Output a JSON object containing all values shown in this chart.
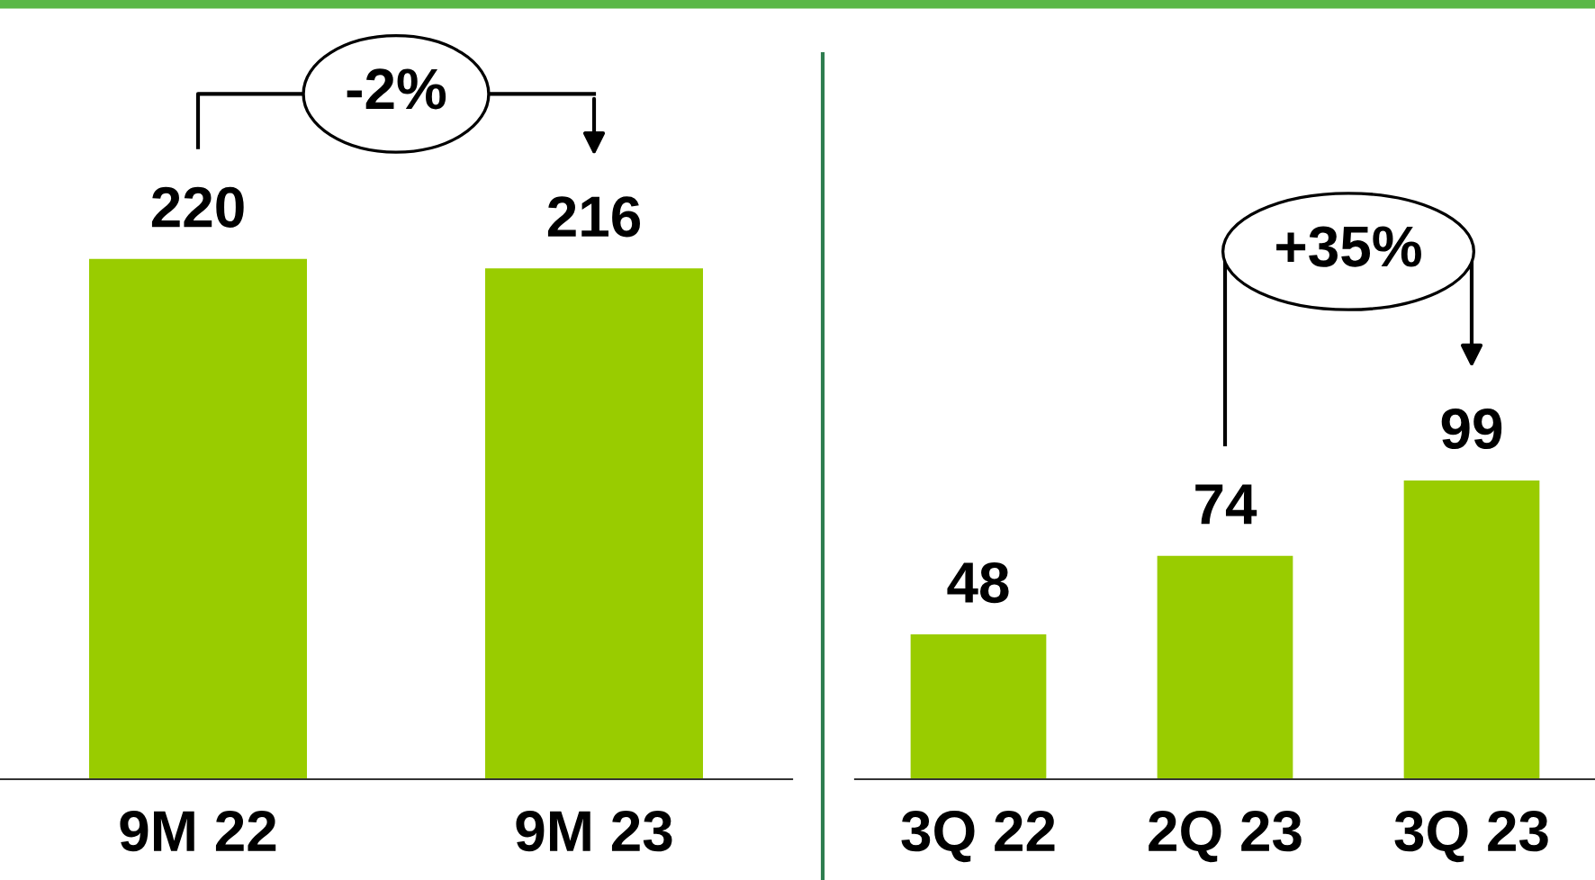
{
  "chart_data": [
    {
      "type": "bar",
      "categories": [
        "9M 22",
        "9M 23"
      ],
      "values": [
        220,
        216
      ],
      "color": "#99cc00",
      "data_labels": true,
      "annotations": [
        "-2%"
      ]
    },
    {
      "type": "bar",
      "categories": [
        "3Q 22",
        "2Q 23",
        "3Q 23"
      ],
      "values": [
        48,
        74,
        99
      ],
      "color": "#99cc00",
      "data_labels": true,
      "annotations": [
        "+35%"
      ]
    }
  ]
}
